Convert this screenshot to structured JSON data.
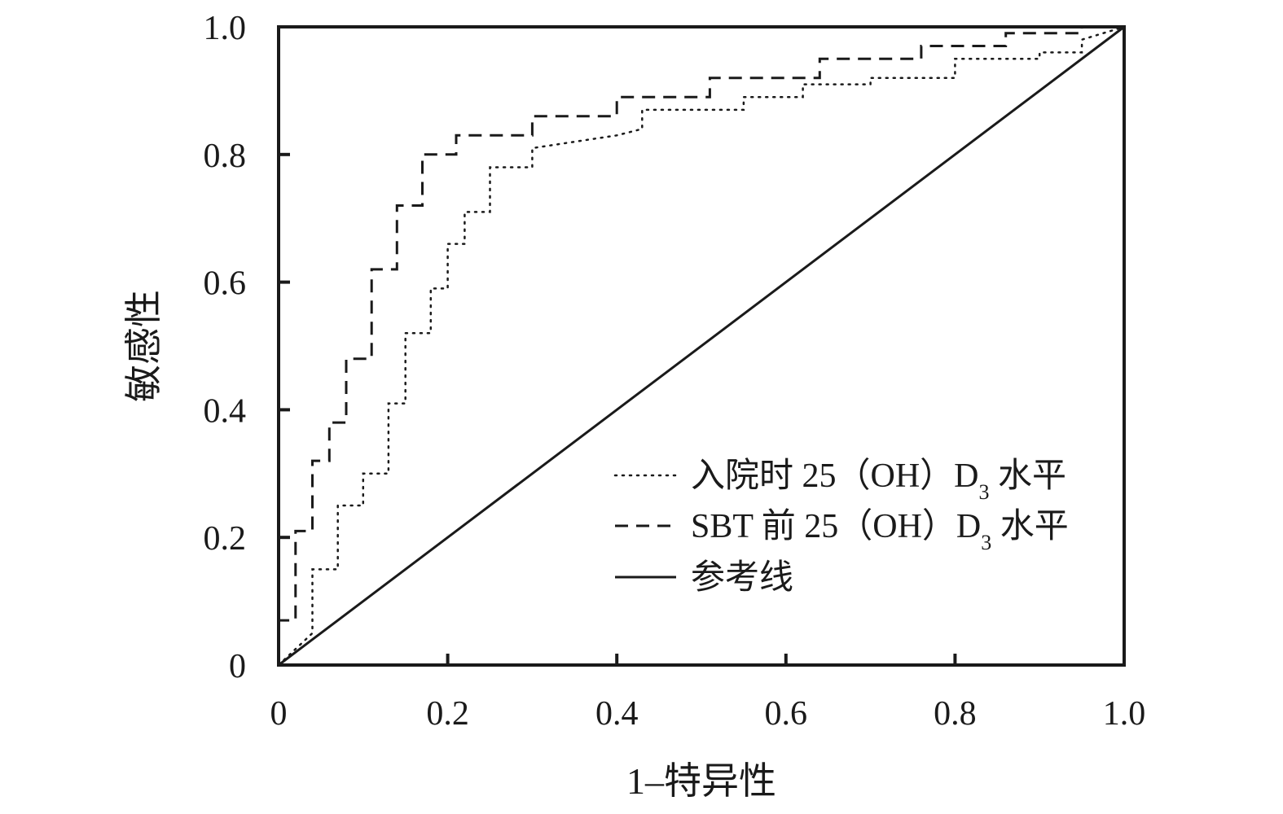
{
  "chart_data": {
    "type": "line",
    "title": "",
    "xlabel": "1–特异性",
    "ylabel": "敏感性",
    "xlim": [
      0,
      1
    ],
    "ylim": [
      0,
      1
    ],
    "x_ticks": [
      "0",
      "0.2",
      "0.4",
      "0.6",
      "0.8",
      "1.0"
    ],
    "y_ticks": [
      "0",
      "0.2",
      "0.4",
      "0.6",
      "0.8",
      "1.0"
    ],
    "grid": false,
    "legend": "lower-right",
    "series": [
      {
        "name": "入院时 25（OH）D3 水平",
        "style": "dotted",
        "color": "#1a1a1a",
        "x": [
          0.0,
          0.04,
          0.04,
          0.07,
          0.07,
          0.1,
          0.1,
          0.13,
          0.13,
          0.15,
          0.15,
          0.18,
          0.18,
          0.2,
          0.2,
          0.22,
          0.22,
          0.25,
          0.25,
          0.3,
          0.3,
          0.4,
          0.43,
          0.43,
          0.55,
          0.55,
          0.62,
          0.62,
          0.7,
          0.7,
          0.8,
          0.8,
          0.9,
          0.9,
          0.95,
          0.95,
          1.0
        ],
        "y": [
          0.0,
          0.05,
          0.15,
          0.15,
          0.25,
          0.25,
          0.3,
          0.3,
          0.41,
          0.41,
          0.52,
          0.52,
          0.59,
          0.59,
          0.66,
          0.66,
          0.71,
          0.71,
          0.78,
          0.78,
          0.81,
          0.83,
          0.84,
          0.87,
          0.87,
          0.89,
          0.89,
          0.91,
          0.91,
          0.92,
          0.92,
          0.95,
          0.95,
          0.96,
          0.96,
          0.98,
          1.0
        ]
      },
      {
        "name": "SBT 前 25（OH）D3 水平",
        "style": "dashed",
        "color": "#1a1a1a",
        "x": [
          0.0,
          0.0,
          0.02,
          0.02,
          0.04,
          0.04,
          0.06,
          0.06,
          0.08,
          0.08,
          0.11,
          0.11,
          0.14,
          0.14,
          0.17,
          0.17,
          0.21,
          0.21,
          0.3,
          0.3,
          0.4,
          0.4,
          0.51,
          0.51,
          0.64,
          0.64,
          0.76,
          0.76,
          0.86,
          0.86,
          0.95,
          0.95,
          1.0
        ],
        "y": [
          0.0,
          0.07,
          0.07,
          0.21,
          0.21,
          0.32,
          0.32,
          0.38,
          0.38,
          0.48,
          0.48,
          0.62,
          0.62,
          0.72,
          0.72,
          0.8,
          0.8,
          0.83,
          0.83,
          0.86,
          0.86,
          0.89,
          0.89,
          0.92,
          0.92,
          0.95,
          0.95,
          0.97,
          0.97,
          0.99,
          0.99,
          1.0,
          1.0
        ]
      },
      {
        "name": "参考线",
        "style": "solid",
        "color": "#1a1a1a",
        "x": [
          0,
          1
        ],
        "y": [
          0,
          1
        ]
      }
    ]
  }
}
